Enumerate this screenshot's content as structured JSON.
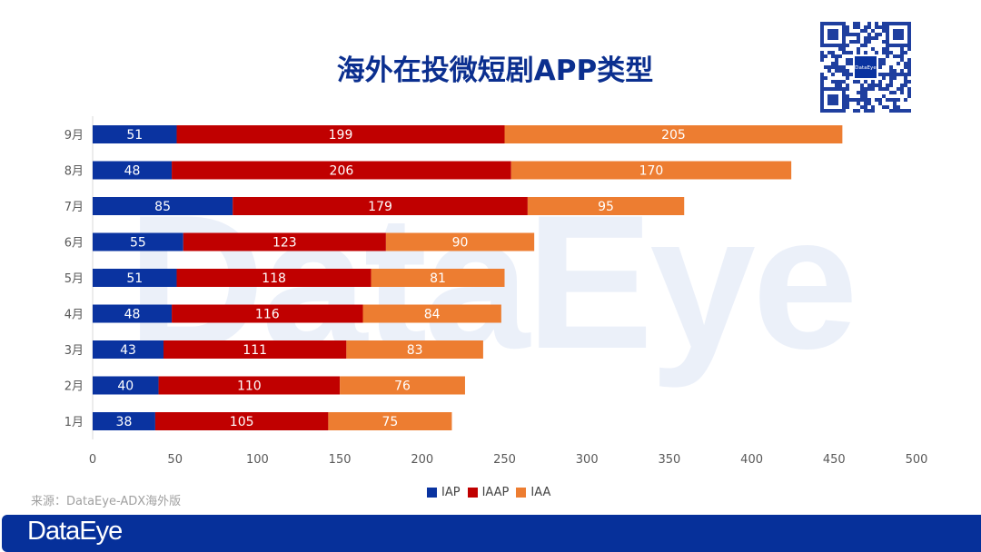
{
  "title": "海外在投微短剧APP类型",
  "source": "来源：DataEye-ADX海外版",
  "brand": "DataEye",
  "qr_center_label": "DataEye",
  "colors": {
    "IAP": "#0a33a0",
    "IAAP": "#c00000",
    "IAA": "#ed7d31",
    "brand": "#06309a"
  },
  "chart_data": {
    "type": "bar",
    "orientation": "horizontal",
    "stacked": true,
    "categories": [
      "1月",
      "2月",
      "3月",
      "4月",
      "5月",
      "6月",
      "7月",
      "8月",
      "9月"
    ],
    "series": [
      {
        "name": "IAP",
        "values": [
          38,
          40,
          43,
          48,
          51,
          55,
          85,
          48,
          51
        ]
      },
      {
        "name": "IAAP",
        "values": [
          105,
          110,
          111,
          116,
          118,
          123,
          179,
          206,
          199
        ]
      },
      {
        "name": "IAA",
        "values": [
          75,
          76,
          83,
          84,
          81,
          90,
          95,
          170,
          205
        ]
      }
    ],
    "xlim": [
      0,
      500
    ],
    "xticks": [
      "0",
      "50",
      "100",
      "150",
      "200",
      "250",
      "300",
      "350",
      "400",
      "450",
      "500"
    ],
    "grid": false,
    "legend_position": "bottom",
    "data_labels": true
  }
}
